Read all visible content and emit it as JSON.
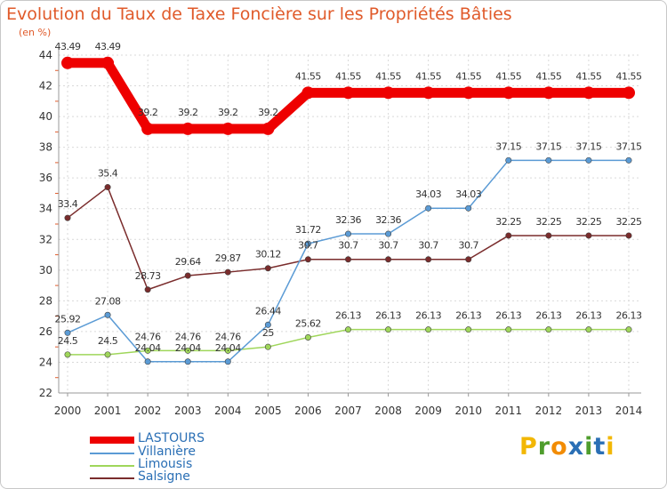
{
  "title": "Evolution du Taux de Taxe Foncière sur les Propriétés Bâties",
  "subtitle": "(en %)",
  "logo_letters": [
    "P",
    "r",
    "o",
    "x",
    "i",
    "t",
    "i"
  ],
  "logo_colors": [
    "#f2b705",
    "#4f9d2d",
    "#f28c05",
    "#2a6fb5",
    "#4f9d2d",
    "#2a6fb5",
    "#f2b705"
  ],
  "chart_data": {
    "type": "line",
    "title": "Evolution du Taux de Taxe Foncière sur les Propriétés Bâties",
    "ylabel": "(en %)",
    "xlabel": "",
    "ylim": [
      22,
      44
    ],
    "yticks": [
      "22",
      "24",
      "26",
      "28",
      "30",
      "32",
      "34",
      "36",
      "38",
      "40",
      "42",
      "44"
    ],
    "x": [
      "2000",
      "2001",
      "2002",
      "2003",
      "2004",
      "2005",
      "2006",
      "2007",
      "2008",
      "2009",
      "2010",
      "2011",
      "2012",
      "2013",
      "2014"
    ],
    "series": [
      {
        "name": "LASTOURS",
        "color": "#ee0000",
        "values": [
          43.49,
          43.49,
          39.2,
          39.2,
          39.2,
          39.2,
          41.55,
          41.55,
          41.55,
          41.55,
          41.55,
          41.55,
          41.55,
          41.55,
          41.55
        ],
        "labels": [
          "43.49",
          "43.49",
          "39.2",
          "39.2",
          "39.2",
          "39.2",
          "41.55",
          "41.55",
          "41.55",
          "41.55",
          "41.55",
          "41.55",
          "41.55",
          "41.55",
          "41.55"
        ]
      },
      {
        "name": "Villanière",
        "color": "#5b9bd5",
        "values": [
          25.92,
          27.08,
          24.04,
          24.04,
          24.04,
          26.44,
          31.72,
          32.36,
          32.36,
          34.03,
          34.03,
          37.15,
          37.15,
          37.15,
          37.15
        ],
        "labels": [
          "25.92",
          "27.08",
          "24.04",
          "24.04",
          "24.04",
          "26.44",
          "31.72",
          "32.36",
          "32.36",
          "34.03",
          "34.03",
          "37.15",
          "37.15",
          "37.15",
          "37.15"
        ]
      },
      {
        "name": "Limousis",
        "color": "#9fd65a",
        "values": [
          24.5,
          24.5,
          24.76,
          24.76,
          24.76,
          25,
          25.62,
          26.13,
          26.13,
          26.13,
          26.13,
          26.13,
          26.13,
          26.13,
          26.13
        ],
        "labels": [
          "24.5",
          "24.5",
          "24.76",
          "24.76",
          "24.76",
          "25",
          "25.62",
          "26.13",
          "26.13",
          "26.13",
          "26.13",
          "26.13",
          "26.13",
          "26.13",
          "26.13"
        ]
      },
      {
        "name": "Salsigne",
        "color": "#7a2c2c",
        "values": [
          33.4,
          35.4,
          28.73,
          29.64,
          29.87,
          30.12,
          30.7,
          30.7,
          30.7,
          30.7,
          30.7,
          32.25,
          32.25,
          32.25,
          32.25
        ],
        "labels": [
          "33.4",
          "35.4",
          "28.73",
          "29.64",
          "29.87",
          "30.12",
          "30.7",
          "30.7",
          "30.7",
          "30.7",
          "30.7",
          "32.25",
          "32.25",
          "32.25",
          "32.25"
        ]
      }
    ],
    "legend_position": "bottom-left",
    "grid": true
  }
}
